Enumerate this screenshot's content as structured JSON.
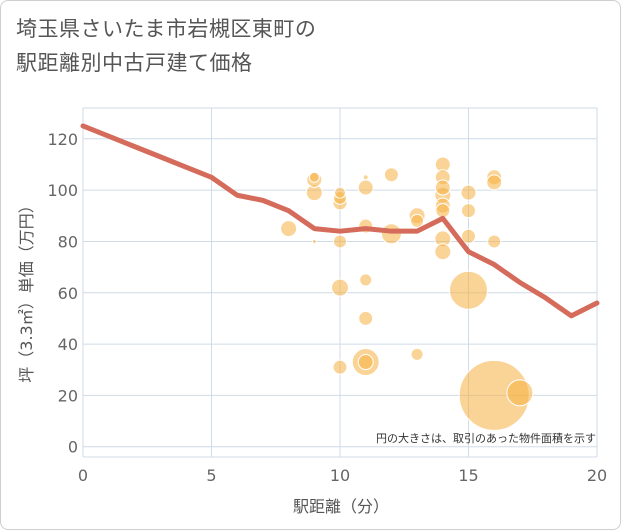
{
  "title": "埼玉県さいたま市岩槻区東町の\n駅距離別中古戸建て価格",
  "note": "円の大きさは、取引のあった物件面積を示す",
  "chart_data": {
    "type": "scatter",
    "title": "埼玉県さいたま市岩槻区東町の駅距離別中古戸建て価格",
    "xlabel": "駅距離（分）",
    "ylabel": "坪（3.3㎡）単価（万円）",
    "xlim": [
      0,
      20
    ],
    "ylim": [
      -4,
      132
    ],
    "x_ticks": [
      "0",
      "5",
      "10",
      "15",
      "20"
    ],
    "y_ticks": [
      "0",
      "20",
      "40",
      "60",
      "80",
      "100",
      "120"
    ],
    "grid": true,
    "colors": {
      "bubble": "#f5b041",
      "line": "#d56b5b",
      "grid": "#cfdbe6"
    },
    "bubbles": [
      {
        "x": 8,
        "y": 85,
        "size": 16
      },
      {
        "x": 9,
        "y": 105,
        "size": 10
      },
      {
        "x": 9,
        "y": 104,
        "size": 15
      },
      {
        "x": 9,
        "y": 99,
        "size": 16
      },
      {
        "x": 9,
        "y": 80,
        "size": 4
      },
      {
        "x": 10,
        "y": 99,
        "size": 11
      },
      {
        "x": 10,
        "y": 97,
        "size": 13
      },
      {
        "x": 10,
        "y": 95,
        "size": 14
      },
      {
        "x": 10,
        "y": 80,
        "size": 13
      },
      {
        "x": 10,
        "y": 62,
        "size": 17
      },
      {
        "x": 10,
        "y": 31,
        "size": 14
      },
      {
        "x": 11,
        "y": 105,
        "size": 5
      },
      {
        "x": 11,
        "y": 101,
        "size": 15
      },
      {
        "x": 11,
        "y": 86,
        "size": 14
      },
      {
        "x": 11,
        "y": 65,
        "size": 12
      },
      {
        "x": 11,
        "y": 50,
        "size": 14
      },
      {
        "x": 11,
        "y": 33,
        "size": 27
      },
      {
        "x": 11,
        "y": 33,
        "size": 15
      },
      {
        "x": 12,
        "y": 106,
        "size": 14
      },
      {
        "x": 12,
        "y": 83,
        "size": 20
      },
      {
        "x": 13,
        "y": 90,
        "size": 16
      },
      {
        "x": 13,
        "y": 88,
        "size": 13
      },
      {
        "x": 13,
        "y": 36,
        "size": 12
      },
      {
        "x": 14,
        "y": 110,
        "size": 15
      },
      {
        "x": 14,
        "y": 105,
        "size": 15
      },
      {
        "x": 14,
        "y": 101,
        "size": 15
      },
      {
        "x": 14,
        "y": 98,
        "size": 16
      },
      {
        "x": 14,
        "y": 94,
        "size": 15
      },
      {
        "x": 14,
        "y": 92,
        "size": 14
      },
      {
        "x": 14,
        "y": 81,
        "size": 16
      },
      {
        "x": 14,
        "y": 76,
        "size": 16
      },
      {
        "x": 15,
        "y": 99,
        "size": 15
      },
      {
        "x": 15,
        "y": 92,
        "size": 14
      },
      {
        "x": 15,
        "y": 82,
        "size": 14
      },
      {
        "x": 15,
        "y": 61,
        "size": 38
      },
      {
        "x": 16,
        "y": 105,
        "size": 15
      },
      {
        "x": 16,
        "y": 103,
        "size": 15
      },
      {
        "x": 16,
        "y": 80,
        "size": 13
      },
      {
        "x": 16,
        "y": 20,
        "size": 70
      },
      {
        "x": 17,
        "y": 21,
        "size": 26
      }
    ],
    "line": {
      "x": [
        0,
        1,
        2,
        3,
        4,
        5,
        6,
        7,
        8,
        9,
        10,
        11,
        12,
        13,
        14,
        15,
        16,
        17,
        18,
        19,
        20
      ],
      "y": [
        125,
        121,
        117,
        113,
        109,
        105,
        98,
        96,
        92,
        85,
        84,
        85,
        84,
        84,
        89,
        76,
        71,
        64,
        58,
        51,
        56
      ]
    }
  }
}
